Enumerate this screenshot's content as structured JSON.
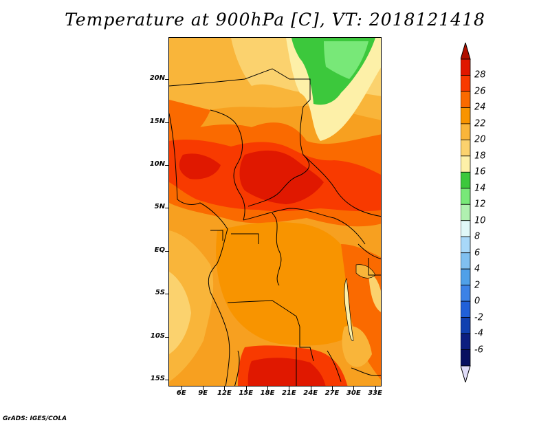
{
  "title": "Temperature at 900hPa [C], VT: 2018121418",
  "credit": "GrADS: IGES/COLA",
  "map": {
    "lat_labels": [
      "20N",
      "15N",
      "10N",
      "5N",
      "EQ",
      "5S",
      "10S",
      "15S"
    ],
    "lat_values": [
      20,
      15,
      10,
      5,
      0,
      -5,
      -10,
      -15
    ],
    "lon_labels": [
      "6E",
      "9E",
      "12E",
      "15E",
      "18E",
      "21E",
      "24E",
      "27E",
      "30E",
      "33E"
    ],
    "lon_values": [
      6,
      9,
      12,
      15,
      18,
      21,
      24,
      27,
      30,
      33
    ],
    "lat_range": [
      -15.8,
      24.9
    ],
    "lon_range": [
      4.2,
      33.9
    ]
  },
  "colorbar": {
    "labels": [
      "28",
      "26",
      "24",
      "22",
      "20",
      "18",
      "16",
      "14",
      "12",
      "10",
      "8",
      "6",
      "4",
      "2",
      "0",
      "-2",
      "-4",
      "-6"
    ],
    "colors": [
      "#e01800",
      "#f83a00",
      "#fa6a00",
      "#f89400",
      "#f9b53a",
      "#fbd26e",
      "#fdf0a8",
      "#3cc83c",
      "#78e878",
      "#b0f0b0",
      "#e0f8f8",
      "#a8d8f8",
      "#80c0f0",
      "#50a0e8",
      "#3c82e6",
      "#2060d8",
      "#1040b0",
      "#0c1e80",
      "#081060"
    ],
    "max_arrow_color": "#b01000",
    "min_arrow_color": "#e0dcf8"
  }
}
